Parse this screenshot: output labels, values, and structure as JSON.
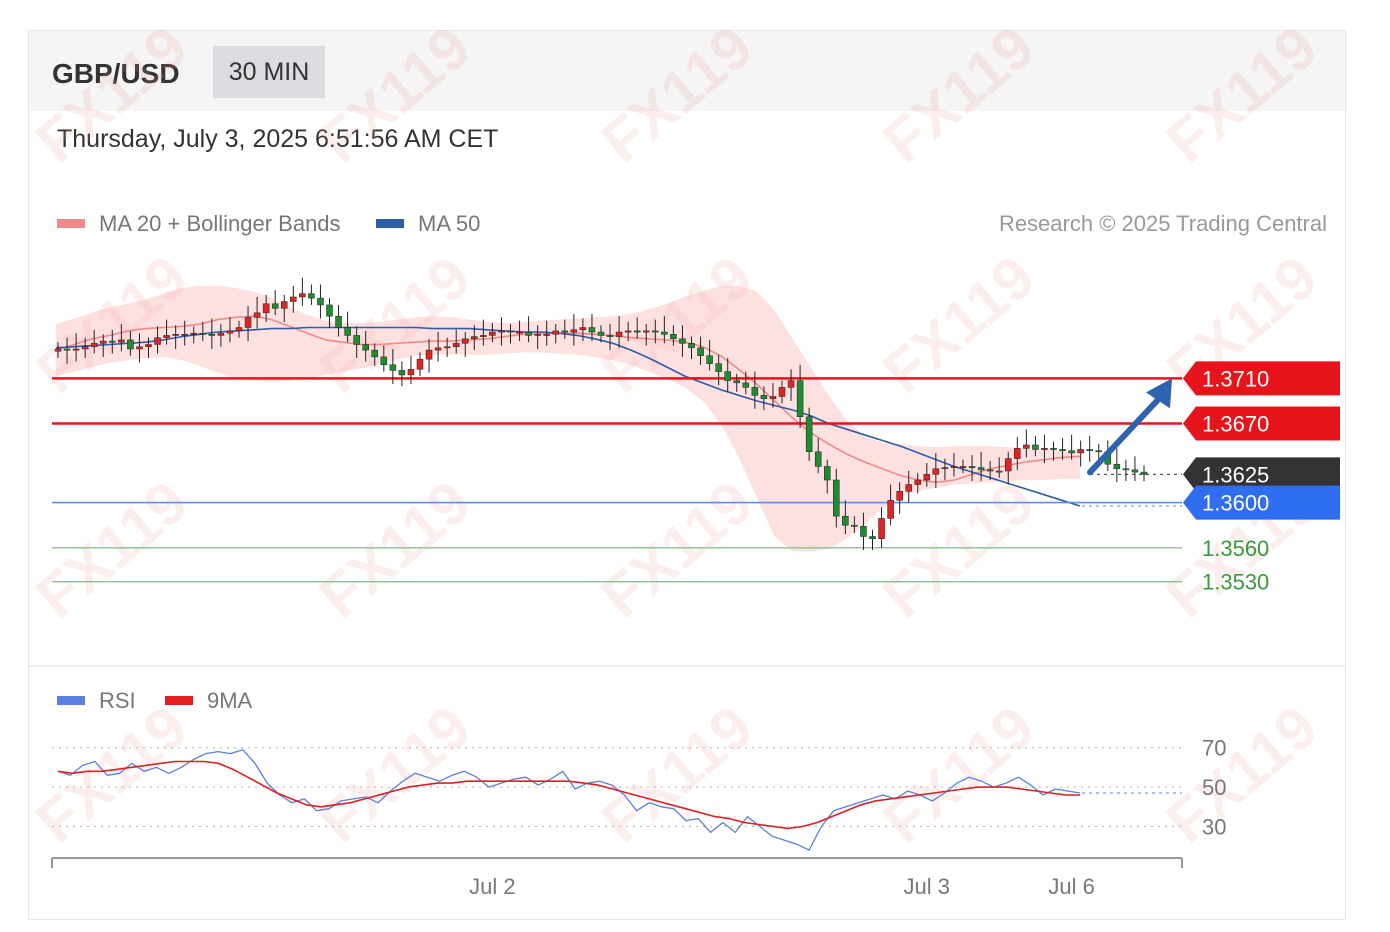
{
  "header": {
    "symbol": "GBP/USD",
    "timeframe": "30 MIN"
  },
  "datetime": "Thursday, July 3, 2025 6:51:56 AM CET",
  "legend": {
    "ma20": {
      "label": "MA 20 + Bollinger Bands",
      "color": "#f08a8a"
    },
    "ma50": {
      "label": "MA 50",
      "color": "#2f5ea8"
    }
  },
  "copyright": "Research © 2025 Trading Central",
  "watermark": "FX119",
  "rsi_legend": {
    "rsi": {
      "label": "RSI",
      "color": "#5b7fe0"
    },
    "ma9": {
      "label": "9MA",
      "color": "#e02020"
    }
  },
  "chart_data": {
    "type": "candlestick",
    "ylim": [
      1.3512,
      1.3813
    ],
    "x_ticks": [
      {
        "label": "Jul 2",
        "index": 48
      },
      {
        "label": "Jul 3",
        "index": 96
      },
      {
        "label": "Jul 6",
        "index": 112
      }
    ],
    "levels": [
      {
        "value": 1.371,
        "label": "1.3710",
        "kind": "resistance",
        "color": "#e8141b"
      },
      {
        "value": 1.367,
        "label": "1.3670",
        "kind": "resistance",
        "color": "#e8141b"
      },
      {
        "value": 1.3625,
        "label": "1.3625",
        "kind": "current",
        "color": "#333333"
      },
      {
        "value": 1.36,
        "label": "1.3600",
        "kind": "pivot",
        "color": "#2f6ef0"
      },
      {
        "value": 1.356,
        "label": "1.3560",
        "kind": "support",
        "color": "#3a9a3a"
      },
      {
        "value": 1.353,
        "label": "1.3530",
        "kind": "support",
        "color": "#3a9a3a"
      }
    ],
    "closes": [
      1.3736,
      1.3735,
      1.3736,
      1.3738,
      1.3741,
      1.3743,
      1.3742,
      1.3744,
      1.3736,
      1.3738,
      1.374,
      1.3746,
      1.3748,
      1.3749,
      1.3749,
      1.375,
      1.3749,
      1.3748,
      1.375,
      1.3752,
      1.3755,
      1.3764,
      1.3768,
      1.3776,
      1.3772,
      1.3778,
      1.3782,
      1.3785,
      1.3781,
      1.3775,
      1.3765,
      1.3755,
      1.3748,
      1.374,
      1.3735,
      1.3729,
      1.3722,
      1.3717,
      1.3713,
      1.3718,
      1.3727,
      1.3735,
      1.3737,
      1.3738,
      1.3741,
      1.3745,
      1.3747,
      1.3748,
      1.3751,
      1.3752,
      1.3751,
      1.3751,
      1.3748,
      1.3749,
      1.3749,
      1.3752,
      1.3751,
      1.3753,
      1.3755,
      1.3751,
      1.3748,
      1.3747,
      1.3751,
      1.3752,
      1.3751,
      1.3752,
      1.3751,
      1.3749,
      1.3745,
      1.3741,
      1.3737,
      1.373,
      1.3723,
      1.3716,
      1.3708,
      1.3706,
      1.3702,
      1.3695,
      1.3692,
      1.3694,
      1.3702,
      1.3708,
      1.3676,
      1.3645,
      1.3632,
      1.362,
      1.3588,
      1.358,
      1.3579,
      1.357,
      1.3568,
      1.3586,
      1.3602,
      1.361,
      1.3616,
      1.362,
      1.3625,
      1.363,
      1.3631,
      1.3632,
      1.3632,
      1.3631,
      1.3629,
      1.3628,
      1.3628,
      1.3639,
      1.3648,
      1.3651,
      1.3647,
      1.3648,
      1.3647,
      1.3646,
      1.3644,
      1.3647,
      1.3646,
      1.3645,
      1.3634,
      1.363,
      1.3629,
      1.3627,
      1.3625
    ],
    "ma20": [
      1.3735,
      1.374,
      1.3745,
      1.3748,
      1.3752,
      1.3754,
      1.3755,
      1.3756,
      1.3758,
      1.3762,
      1.3764,
      1.3765,
      1.3762,
      1.3756,
      1.375,
      1.3744,
      1.3742,
      1.374,
      1.374,
      1.3741,
      1.3742,
      1.3743,
      1.3743,
      1.3744,
      1.3745,
      1.3747,
      1.3749,
      1.375,
      1.375,
      1.375,
      1.3749,
      1.3748,
      1.3746,
      1.3745,
      1.3744,
      1.3742,
      1.3738,
      1.373,
      1.3718,
      1.3705,
      1.369,
      1.3675,
      1.3662,
      1.3652,
      1.3643,
      1.3636,
      1.363,
      1.3624,
      1.362,
      1.3618,
      1.362,
      1.3625,
      1.363,
      1.3633,
      1.3636,
      1.3638,
      1.364,
      1.3641
    ],
    "ma50": [
      1.3737,
      1.3738,
      1.3739,
      1.374,
      1.3741,
      1.3742,
      1.3744,
      1.3747,
      1.3749,
      1.3751,
      1.3752,
      1.3753,
      1.3754,
      1.3754,
      1.3755,
      1.3755,
      1.3755,
      1.3755,
      1.3755,
      1.3755,
      1.3755,
      1.3754,
      1.3754,
      1.3754,
      1.3753,
      1.3752,
      1.3751,
      1.3751,
      1.375,
      1.3748,
      1.3745,
      1.3741,
      1.3735,
      1.3728,
      1.372,
      1.3712,
      1.3706,
      1.37,
      1.3695,
      1.369,
      1.3686,
      1.3682,
      1.3677,
      1.367,
      1.3665,
      1.366,
      1.3655,
      1.365,
      1.3644,
      1.3638,
      1.3632,
      1.3627,
      1.3622,
      1.3617,
      1.3612,
      1.3607,
      1.3602,
      1.3597
    ],
    "bb_upper": [
      1.3758,
      1.3763,
      1.3768,
      1.3773,
      1.3776,
      1.378,
      1.3785,
      1.379,
      1.3792,
      1.3792,
      1.379,
      1.3787,
      1.3781,
      1.3773,
      1.3766,
      1.3761,
      1.3759,
      1.3759,
      1.376,
      1.3762,
      1.3764,
      1.3765,
      1.3764,
      1.3762,
      1.376,
      1.3759,
      1.376,
      1.3761,
      1.3762,
      1.3763,
      1.3764,
      1.3765,
      1.3767,
      1.3771,
      1.3776,
      1.3782,
      1.3787,
      1.3792,
      1.3792,
      1.3787,
      1.377,
      1.3745,
      1.372,
      1.3695,
      1.3673,
      1.3659,
      1.3653,
      1.3652,
      1.365,
      1.3649,
      1.365,
      1.365,
      1.365,
      1.3649,
      1.3648,
      1.3647,
      1.3646,
      1.3645
    ],
    "bb_lower": [
      1.3712,
      1.3716,
      1.372,
      1.3724,
      1.3726,
      1.3728,
      1.3729,
      1.3726,
      1.3721,
      1.3715,
      1.371,
      1.3708,
      1.3707,
      1.3708,
      1.371,
      1.3713,
      1.3716,
      1.3719,
      1.3723,
      1.3727,
      1.373,
      1.3731,
      1.3731,
      1.3731,
      1.3731,
      1.3732,
      1.3733,
      1.3733,
      1.3732,
      1.3731,
      1.3729,
      1.3726,
      1.3722,
      1.3716,
      1.371,
      1.3702,
      1.369,
      1.367,
      1.364,
      1.3605,
      1.357,
      1.3557,
      1.3557,
      1.3559,
      1.3568,
      1.358,
      1.3595,
      1.3605,
      1.361,
      1.3613,
      1.3616,
      1.3617,
      1.3618,
      1.3619,
      1.362,
      1.362,
      1.3621,
      1.3621
    ],
    "forecast_target": 1.371,
    "rsi": {
      "ylim": [
        15,
        80
      ],
      "ticks": [
        70,
        50,
        30
      ],
      "rsi_values": [
        58,
        56,
        61,
        63,
        56,
        57,
        62,
        58,
        60,
        57,
        60,
        64,
        67,
        68,
        67,
        69,
        62,
        52,
        46,
        42,
        44,
        38,
        39,
        43,
        44,
        45,
        42,
        48,
        53,
        57,
        55,
        53,
        56,
        58,
        55,
        50,
        52,
        54,
        55,
        51,
        54,
        58,
        49,
        52,
        53,
        51,
        46,
        38,
        42,
        40,
        39,
        33,
        34,
        27,
        32,
        27,
        35,
        30,
        25,
        23,
        21,
        18,
        30,
        38,
        40,
        42,
        44,
        46,
        44,
        48,
        46,
        43,
        47,
        52,
        55,
        53,
        50,
        52,
        55,
        51,
        46,
        49,
        48,
        47
      ],
      "ma9_values": [
        58,
        57,
        58,
        58,
        59,
        60,
        61,
        62,
        63,
        63,
        63,
        62,
        59,
        55,
        51,
        47,
        44,
        41,
        40,
        41,
        42,
        44,
        46,
        48,
        50,
        51,
        52,
        52,
        53,
        53,
        53,
        53,
        53,
        53,
        53,
        53,
        52,
        51,
        49,
        47,
        45,
        43,
        41,
        39,
        37,
        35,
        34,
        32,
        31,
        30,
        29,
        30,
        32,
        35,
        38,
        41,
        43,
        44,
        45,
        46,
        47,
        48,
        49,
        50,
        50,
        50,
        49,
        48,
        47,
        46,
        46
      ]
    }
  }
}
